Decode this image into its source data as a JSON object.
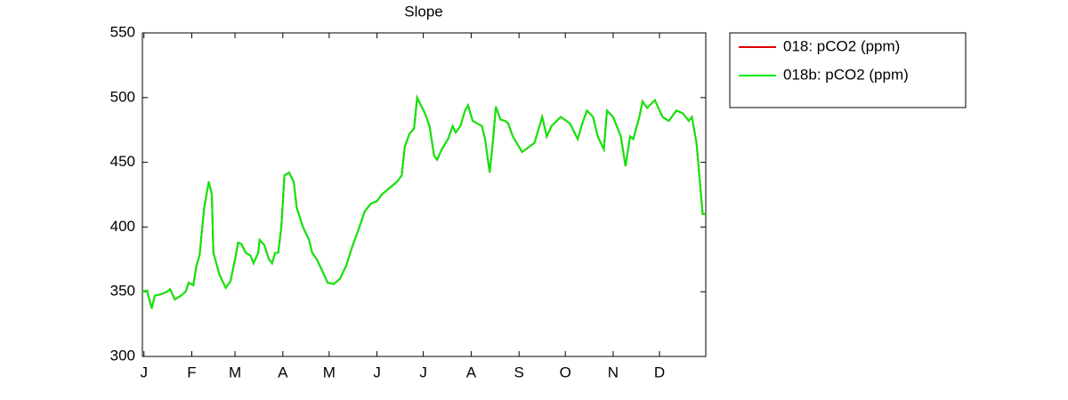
{
  "chart_data": {
    "type": "line",
    "title": "Slope",
    "x": [
      0,
      3,
      6,
      8,
      12,
      16,
      18,
      21,
      25,
      28,
      30,
      33,
      35,
      37,
      40,
      43,
      45,
      46,
      50,
      54,
      57,
      60,
      62,
      64,
      67,
      70,
      72,
      75,
      76,
      79,
      82,
      84,
      86,
      88,
      90,
      92,
      95,
      98,
      100,
      104,
      108,
      110,
      113,
      117,
      120,
      124,
      128,
      132,
      136,
      140,
      144,
      148,
      152,
      155,
      160,
      165,
      168,
      170,
      173,
      176,
      178,
      180,
      183,
      186,
      189,
      191,
      194,
      198,
      201,
      203,
      206,
      209,
      211,
      214,
      217,
      220,
      222,
      225,
      227,
      229,
      232,
      235,
      237,
      240,
      246,
      254,
      259,
      262,
      265,
      271,
      277,
      282,
      285,
      288,
      292,
      295,
      299,
      301,
      305,
      310,
      313,
      316,
      318,
      322,
      324,
      327,
      332,
      337,
      341,
      346,
      350,
      354,
      356,
      359,
      363,
      365
    ],
    "series": [
      {
        "name": "018: pCO2 (ppm)",
        "color": "#e00000",
        "values": [
          350,
          351,
          337,
          347,
          348,
          350,
          352,
          344,
          347,
          350,
          357,
          355,
          370,
          378,
          415,
          435,
          425,
          380,
          363,
          353,
          358,
          375,
          388,
          387,
          380,
          378,
          372,
          380,
          390,
          386,
          375,
          372,
          380,
          380,
          400,
          440,
          442,
          435,
          415,
          400,
          390,
          380,
          375,
          365,
          357,
          356,
          360,
          370,
          385,
          398,
          412,
          418,
          420,
          425,
          430,
          435,
          440,
          462,
          472,
          476,
          500,
          495,
          488,
          478,
          455,
          452,
          460,
          468,
          478,
          473,
          478,
          490,
          494,
          482,
          480,
          478,
          468,
          442,
          465,
          493,
          483,
          482,
          480,
          470,
          458,
          465,
          485,
          470,
          478,
          485,
          480,
          468,
          480,
          490,
          485,
          470,
          460,
          490,
          485,
          470,
          447,
          470,
          468,
          485,
          497,
          492,
          498,
          485,
          482,
          490,
          488,
          482,
          485,
          465,
          410,
          410
        ]
      },
      {
        "name": "018b: pCO2 (ppm)",
        "color": "#00ee00",
        "values": [
          350,
          351,
          337,
          347,
          348,
          350,
          352,
          344,
          347,
          350,
          357,
          355,
          370,
          378,
          415,
          435,
          425,
          380,
          363,
          353,
          358,
          375,
          388,
          387,
          380,
          378,
          372,
          380,
          390,
          386,
          375,
          372,
          380,
          380,
          400,
          440,
          442,
          435,
          415,
          400,
          390,
          380,
          375,
          365,
          357,
          356,
          360,
          370,
          385,
          398,
          412,
          418,
          420,
          425,
          430,
          435,
          440,
          462,
          472,
          476,
          500,
          495,
          488,
          478,
          455,
          452,
          460,
          468,
          478,
          473,
          478,
          490,
          494,
          482,
          480,
          478,
          468,
          442,
          465,
          493,
          483,
          482,
          480,
          470,
          458,
          465,
          485,
          470,
          478,
          485,
          480,
          468,
          480,
          490,
          485,
          470,
          460,
          490,
          485,
          470,
          447,
          470,
          468,
          485,
          497,
          492,
          498,
          485,
          482,
          490,
          488,
          482,
          485,
          465,
          410,
          410
        ]
      }
    ],
    "xlim": [
      0,
      365
    ],
    "xticks": [
      {
        "value": 1,
        "label": "J"
      },
      {
        "value": 32,
        "label": "F"
      },
      {
        "value": 60,
        "label": "M"
      },
      {
        "value": 91,
        "label": "A"
      },
      {
        "value": 121,
        "label": "M"
      },
      {
        "value": 152,
        "label": "J"
      },
      {
        "value": 182,
        "label": "J"
      },
      {
        "value": 213,
        "label": "A"
      },
      {
        "value": 244,
        "label": "S"
      },
      {
        "value": 274,
        "label": "O"
      },
      {
        "value": 305,
        "label": "N"
      },
      {
        "value": 335,
        "label": "D"
      }
    ],
    "ylim": [
      300,
      550
    ],
    "yticks": [
      300,
      350,
      400,
      450,
      500,
      550
    ],
    "legend": "outside-right"
  }
}
